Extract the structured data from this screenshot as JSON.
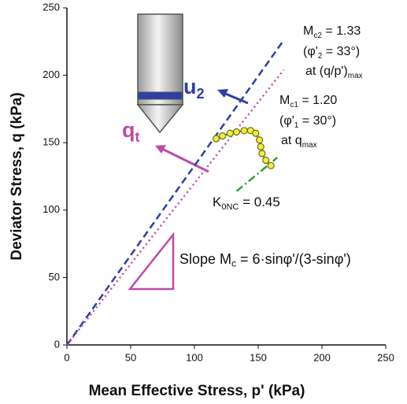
{
  "chart_data": {
    "type": "line",
    "x_label": "Mean Effective Stress, p' (kPa)",
    "y_label": "Deviator Stress, q (kPa)",
    "xlim": [
      0,
      250
    ],
    "ylim": [
      0,
      250
    ],
    "xticks": [
      0,
      50,
      100,
      150,
      200,
      250
    ],
    "yticks": [
      0,
      50,
      100,
      150,
      200,
      250
    ],
    "series": [
      {
        "color": "#2e3fa8",
        "dash": "dashed",
        "x": [
          0,
          170
        ],
        "values": [
          0,
          226
        ]
      },
      {
        "color": "#c04aa8",
        "dash": "dotted",
        "x": [
          0,
          170
        ],
        "values": [
          0,
          204
        ]
      },
      {
        "color": "#2aa33a",
        "dash": "dashdot",
        "x": [
          133,
          165
        ],
        "values": [
          114,
          139
        ]
      },
      {
        "color": "#6b6b1e",
        "marker_fill": "#f2ee3a",
        "x": [
          117,
          122,
          128,
          133,
          139,
          144,
          148,
          151,
          152,
          153,
          156,
          160
        ],
        "values": [
          153,
          155,
          157,
          158,
          159,
          159,
          157,
          152,
          147,
          142,
          137,
          133
        ]
      }
    ],
    "annotations": [
      {
        "color": "#111",
        "parts": [
          {
            "text": "M"
          },
          {
            "text": "c2",
            "sub": true
          },
          {
            "text": " = 1.33"
          }
        ]
      },
      {
        "color": "#111",
        "parts": [
          {
            "text": "(φ'"
          },
          {
            "text": "2",
            "sub": true
          },
          {
            "text": " = 33°)"
          }
        ]
      },
      {
        "color": "#111",
        "parts": [
          {
            "text": "at (q/p')"
          },
          {
            "text": "max",
            "sub": true
          }
        ]
      },
      {
        "color": "#111",
        "parts": [
          {
            "text": "M"
          },
          {
            "text": "c1",
            "sub": true
          },
          {
            "text": " = 1.20"
          }
        ]
      },
      {
        "color": "#111",
        "parts": [
          {
            "text": "(φ'"
          },
          {
            "text": "1",
            "sub": true
          },
          {
            "text": " = 30°)"
          }
        ]
      },
      {
        "color": "#111",
        "parts": [
          {
            "text": "at q"
          },
          {
            "text": "max",
            "sub": true
          }
        ]
      },
      {
        "color": "#111",
        "parts": [
          {
            "text": "K"
          },
          {
            "text": "0NC",
            "sub": true
          },
          {
            "text": " = 0.45"
          }
        ]
      },
      {
        "color": "#111",
        "parts": [
          {
            "text": "Slope M"
          },
          {
            "text": "c",
            "sub": true
          },
          {
            "text": " = 6·sinφ'/(3-sinφ')"
          }
        ]
      },
      {
        "color": "#2e3fa8",
        "parts": [
          {
            "text": "u"
          },
          {
            "text": "2",
            "sub": true
          }
        ]
      },
      {
        "color": "#c04aa8",
        "parts": [
          {
            "text": "q"
          },
          {
            "text": "t",
            "sub": true
          }
        ]
      }
    ]
  }
}
